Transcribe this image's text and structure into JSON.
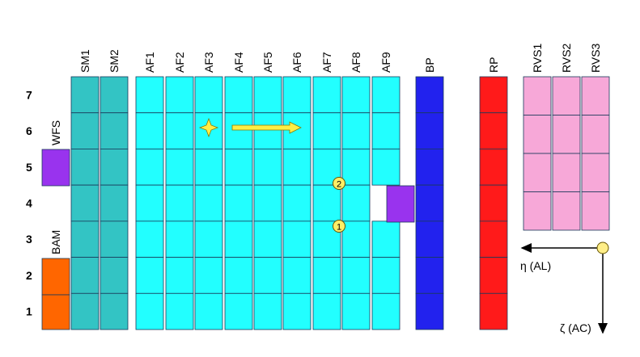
{
  "column_labels": [
    "SM1",
    "SM2",
    "AF1",
    "AF2",
    "AF3",
    "AF4",
    "AF5",
    "AF6",
    "AF7",
    "AF8",
    "AF9",
    "BP",
    "RP",
    "RVS1",
    "RVS2",
    "RVS3"
  ],
  "row_labels": [
    "7",
    "6",
    "5",
    "4",
    "3",
    "2",
    "1"
  ],
  "side_labels": [
    "WFS",
    "BAM"
  ],
  "markers": [
    "2",
    "1"
  ],
  "axes": {
    "al": "η (AL)",
    "ac": "ζ (AC)"
  }
}
